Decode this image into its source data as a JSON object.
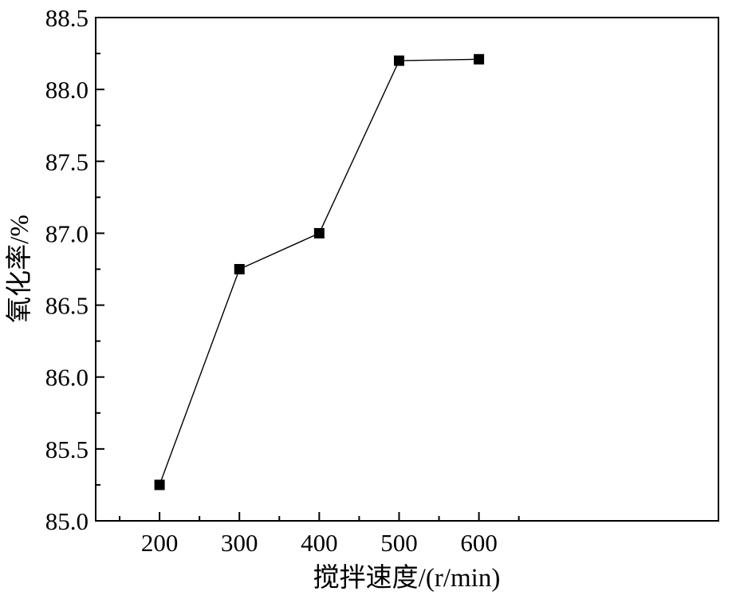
{
  "chart_data": {
    "type": "line",
    "title": "",
    "xlabel": "搅拌速度/(r/min)",
    "ylabel": "氧化率/%",
    "x": [
      200,
      300,
      400,
      500,
      600
    ],
    "series": [
      {
        "name": "",
        "values": [
          85.25,
          86.75,
          87.0,
          88.2,
          88.21
        ]
      }
    ],
    "xlim": [
      120,
      900
    ],
    "ylim": [
      85.0,
      88.5
    ],
    "x_ticks": [
      200,
      300,
      400,
      500,
      600
    ],
    "x_tick_labels": [
      "200",
      "300",
      "400",
      "500",
      "600"
    ],
    "y_ticks": [
      85.0,
      85.5,
      86.0,
      86.5,
      87.0,
      87.5,
      88.0,
      88.5
    ],
    "y_tick_labels": [
      "85.0",
      "85.5",
      "86.0",
      "86.5",
      "87.0",
      "87.5",
      "88.0",
      "88.5"
    ],
    "grid": false,
    "legend": "none",
    "marker": "filled-square",
    "line_color": "#000000",
    "marker_color": "#000000"
  }
}
